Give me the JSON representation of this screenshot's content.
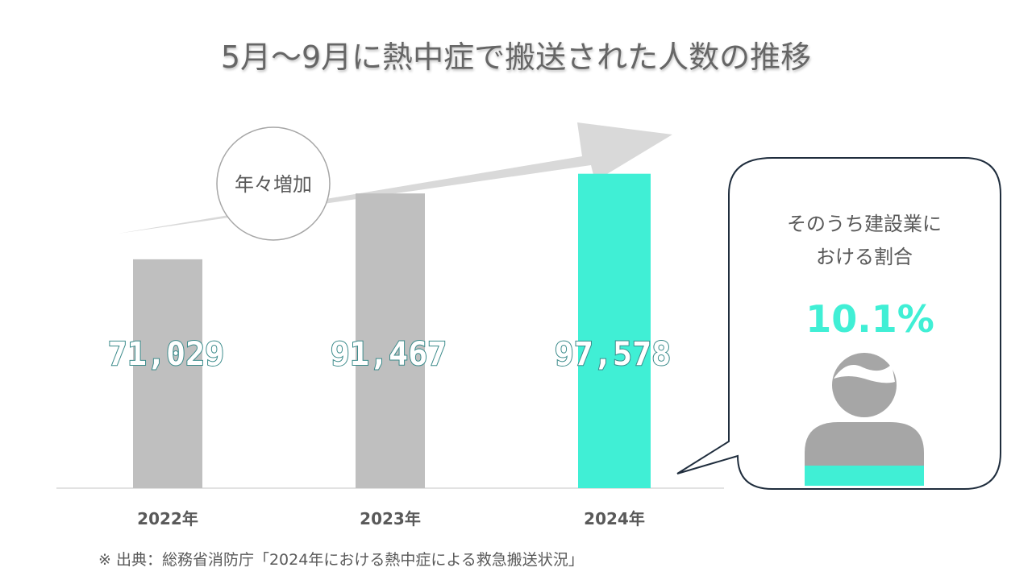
{
  "title": "5月～9月に熱中症で搬送された人数の推移",
  "badge": "年々増加",
  "callout": {
    "line1": "そのうち建設業に",
    "line2": "おける割合",
    "ratio": "10.1%"
  },
  "source": "※ 出典：総務省消防庁「2024年における熱中症による救急搬送状況」",
  "colors": {
    "bar_default": "#bfbfbf",
    "bar_highlight": "#40efd5",
    "text_gray": "#595959",
    "arrow": "#d9d9d9",
    "bubble_border": "#1f2d3d",
    "person": "#a6a6a6"
  },
  "icons": {
    "person": "person-silhouette-icon"
  },
  "chart_data": {
    "type": "bar",
    "categories": [
      "2022年",
      "2023年",
      "2024年"
    ],
    "values": [
      71029,
      91467,
      97578
    ],
    "value_labels": [
      "71,029",
      "91,467",
      "97,578"
    ],
    "highlight_index": 2,
    "ylim": [
      0,
      100000
    ]
  }
}
